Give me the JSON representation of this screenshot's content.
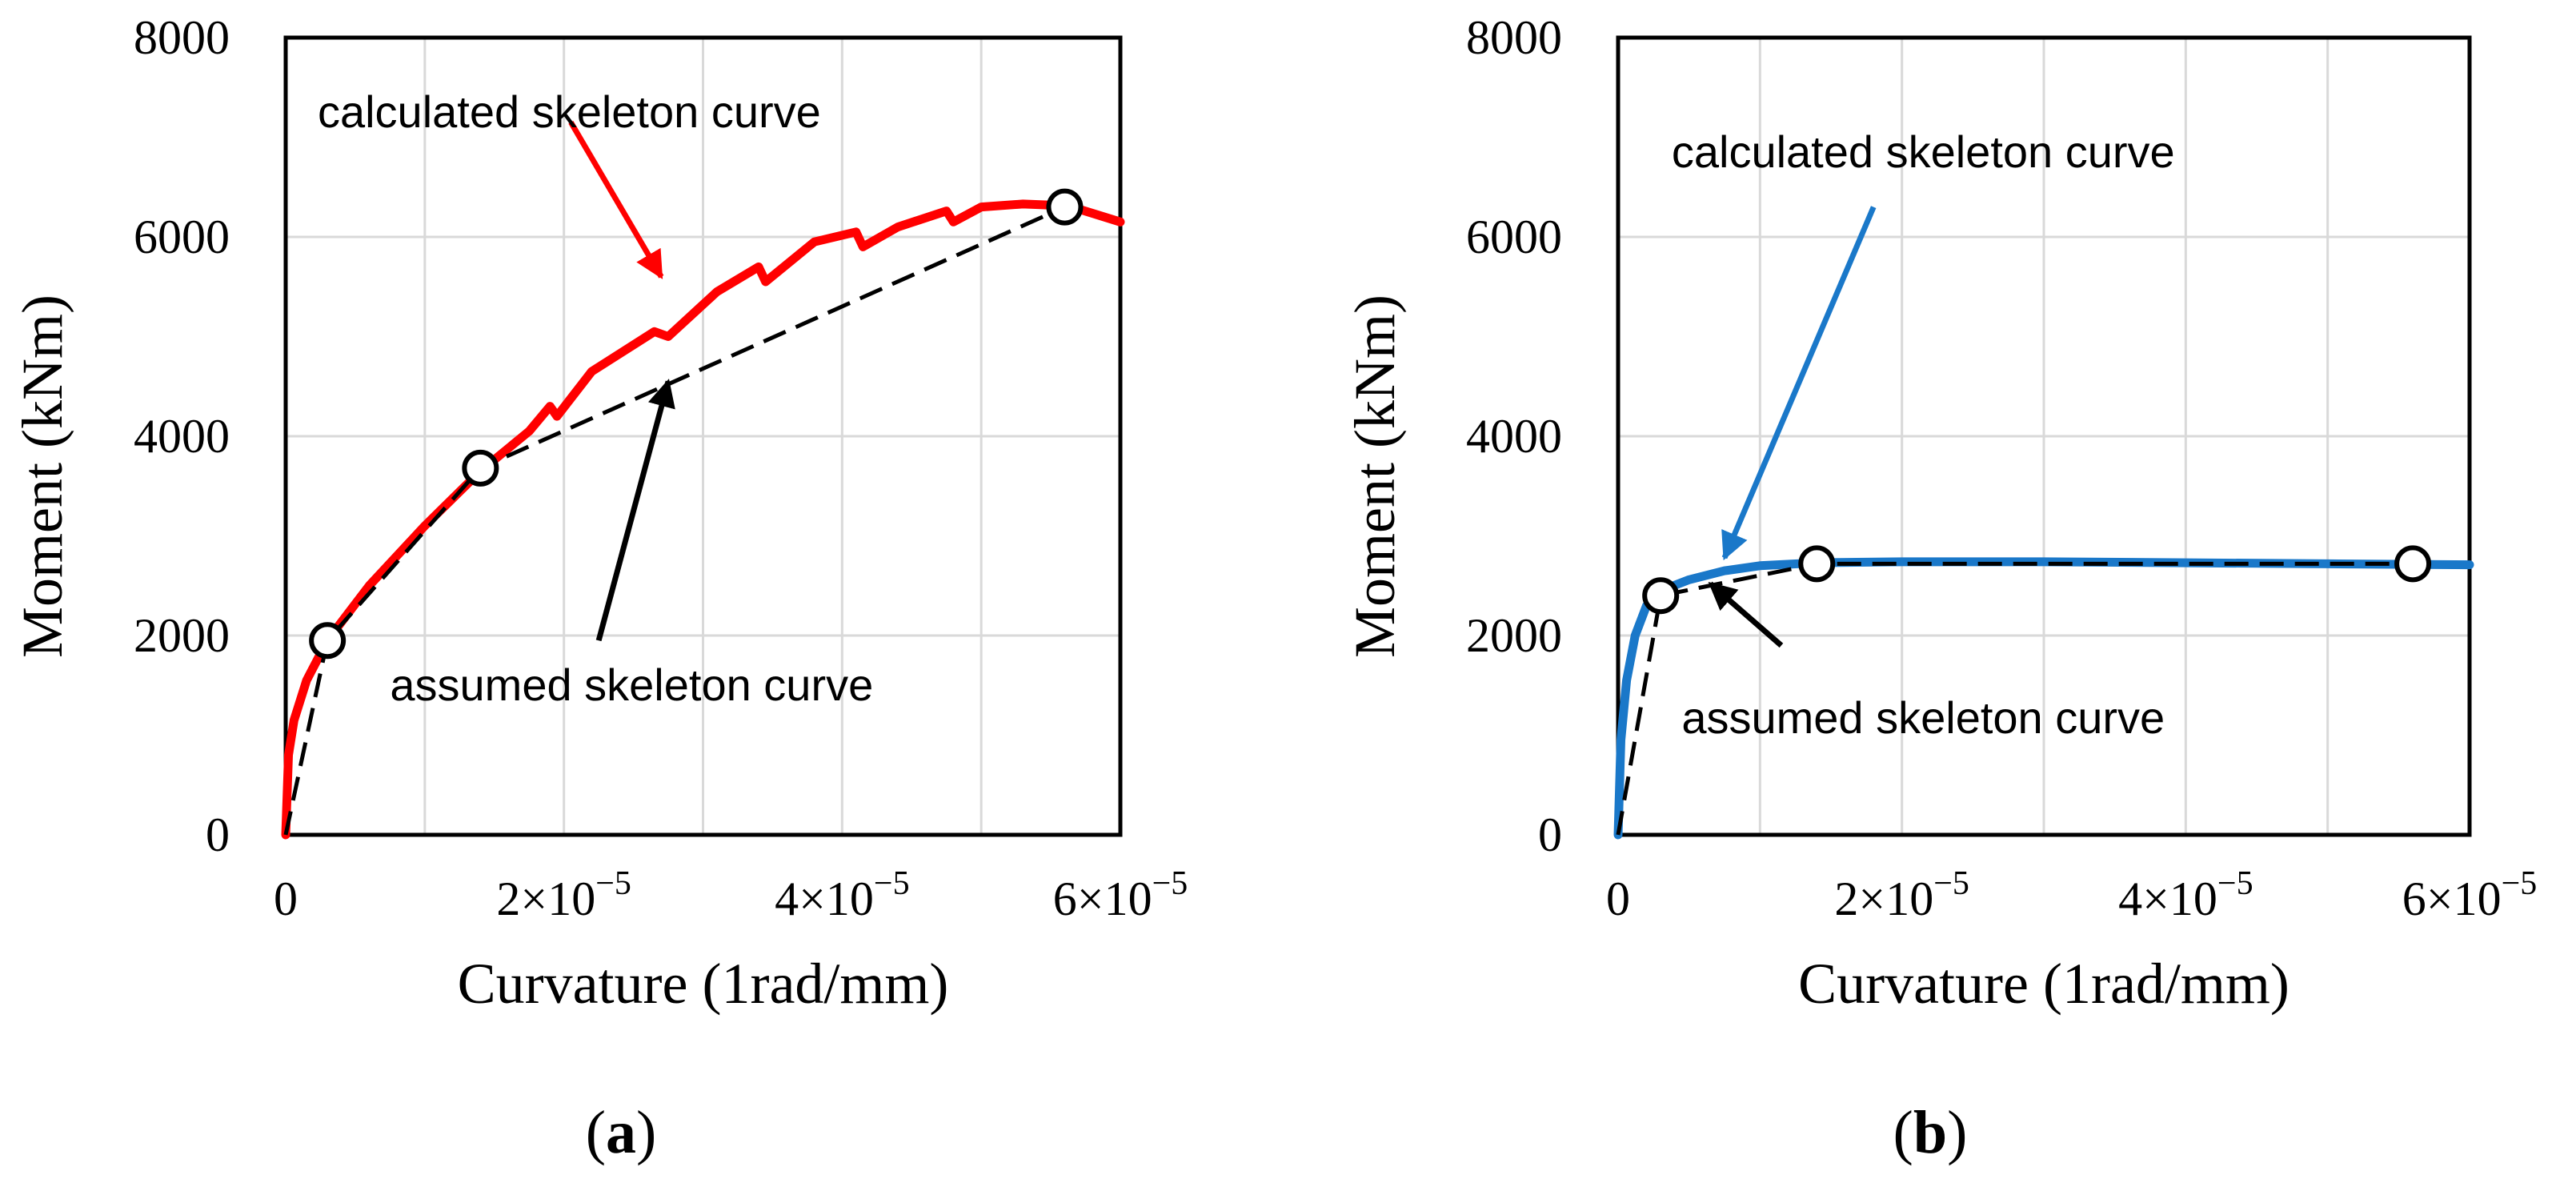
{
  "chart_data": [
    {
      "panel_label": "(a)",
      "type": "line",
      "xlabel": "Curvature (1rad/mm)",
      "ylabel": "Moment (kNm)",
      "xlim": [
        0,
        6e-05
      ],
      "ylim": [
        0,
        8000
      ],
      "x_ticks": [
        0,
        2e-05,
        4e-05,
        6e-05
      ],
      "x_tick_labels": [
        {
          "mantissa": "0",
          "exponent": ""
        },
        {
          "mantissa": "2×10",
          "exponent": "−5"
        },
        {
          "mantissa": "4×10",
          "exponent": "−5"
        },
        {
          "mantissa": "6×10",
          "exponent": "−5"
        }
      ],
      "y_ticks": [
        0,
        2000,
        4000,
        6000,
        8000
      ],
      "y_tick_labels": [
        "0",
        "2000",
        "4000",
        "6000",
        "8000"
      ],
      "grid": true,
      "series": [
        {
          "name": "calculated skeleton curve",
          "style": "solid",
          "color": "#ff0000",
          "x": [
            0,
            2e-07,
            6e-07,
            1.5e-06,
            3e-06,
            6e-06,
            1e-05,
            1.4e-05,
            1.75e-05,
            1.9e-05,
            1.95e-05,
            2.2e-05,
            2.65e-05,
            2.75e-05,
            3.1e-05,
            3.4e-05,
            3.45e-05,
            3.8e-05,
            4.1e-05,
            4.15e-05,
            4.4e-05,
            4.75e-05,
            4.8e-05,
            5e-05,
            5.3e-05,
            5.5e-05,
            5.7e-05,
            6e-05
          ],
          "y": [
            0,
            800,
            1150,
            1550,
            1950,
            2500,
            3100,
            3650,
            4050,
            4300,
            4200,
            4650,
            5050,
            5000,
            5450,
            5700,
            5550,
            5950,
            6050,
            5900,
            6100,
            6260,
            6150,
            6300,
            6330,
            6320,
            6280,
            6150
          ]
        },
        {
          "name": "assumed skeleton curve",
          "style": "dashed",
          "color": "#000000",
          "x": [
            0,
            3e-06,
            1.4e-05,
            5.6e-05
          ],
          "y": [
            0,
            1950,
            3680,
            6300
          ]
        }
      ],
      "markers": [
        {
          "x": 3e-06,
          "y": 1950
        },
        {
          "x": 1.4e-05,
          "y": 3680
        },
        {
          "x": 5.6e-05,
          "y": 6300
        }
      ],
      "annotations": [
        {
          "text": "calculated skeleton curve",
          "arrow_color": "#ff0000",
          "text_at": [
            2.3e-06,
            7100
          ],
          "text_anchor": "start",
          "tail": [
            2.05e-05,
            7150
          ],
          "head": [
            2.7e-05,
            5600
          ]
        },
        {
          "text": "assumed skeleton curve",
          "arrow_color": "#000000",
          "text_at": [
            7.5e-06,
            1350
          ],
          "text_anchor": "start",
          "tail": [
            2.25e-05,
            1950
          ],
          "head": [
            2.75e-05,
            4550
          ]
        }
      ]
    },
    {
      "panel_label": "(b)",
      "type": "line",
      "xlabel": "Curvature (1rad/mm)",
      "ylabel": "Moment (kNm)",
      "xlim": [
        0,
        6e-05
      ],
      "ylim": [
        0,
        8000
      ],
      "x_ticks": [
        0,
        2e-05,
        4e-05,
        6e-05
      ],
      "x_tick_labels": [
        {
          "mantissa": "0",
          "exponent": ""
        },
        {
          "mantissa": "2×10",
          "exponent": "−5"
        },
        {
          "mantissa": "4×10",
          "exponent": "−5"
        },
        {
          "mantissa": "6×10",
          "exponent": "−5"
        }
      ],
      "y_ticks": [
        0,
        2000,
        4000,
        6000,
        8000
      ],
      "y_tick_labels": [
        "0",
        "2000",
        "4000",
        "6000",
        "8000"
      ],
      "grid": true,
      "series": [
        {
          "name": "calculated skeleton curve",
          "style": "solid",
          "color": "#1a78c9",
          "x": [
            0,
            2e-07,
            6e-07,
            1.2e-06,
            2e-06,
            3e-06,
            5e-06,
            7.5e-06,
            1e-05,
            1.4e-05,
            2e-05,
            3e-05,
            4e-05,
            5e-05,
            6e-05
          ],
          "y": [
            0,
            950,
            1550,
            2000,
            2300,
            2450,
            2560,
            2650,
            2700,
            2730,
            2740,
            2740,
            2730,
            2720,
            2710
          ]
        },
        {
          "name": "assumed skeleton curve",
          "style": "dashed",
          "color": "#000000",
          "x": [
            0,
            3e-06,
            1.4e-05,
            5.6e-05
          ],
          "y": [
            0,
            2400,
            2720,
            2720
          ]
        }
      ],
      "markers": [
        {
          "x": 3e-06,
          "y": 2400
        },
        {
          "x": 1.4e-05,
          "y": 2720
        },
        {
          "x": 5.6e-05,
          "y": 2720
        }
      ],
      "annotations": [
        {
          "text": "calculated skeleton curve",
          "arrow_color": "#1a78c9",
          "text_at": [
            2.15e-05,
            6700
          ],
          "text_anchor": "middle",
          "tail": [
            1.8e-05,
            6300
          ],
          "head": [
            7.5e-06,
            2780
          ]
        },
        {
          "text": "assumed skeleton curve",
          "arrow_color": "#000000",
          "text_at": [
            2.15e-05,
            1020
          ],
          "text_anchor": "middle",
          "tail": [
            1.15e-05,
            1900
          ],
          "head": [
            6.5e-06,
            2520
          ]
        }
      ]
    }
  ]
}
